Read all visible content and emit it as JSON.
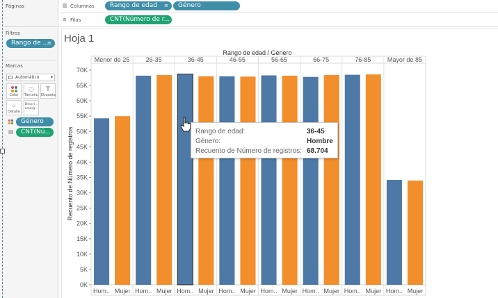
{
  "left_panel": {
    "pages_title": "Páginas",
    "filters_title": "Filtros",
    "filter_pill": "Rango de ...",
    "marks_title": "Marcas",
    "mark_type": "Automático",
    "mark_buttons": [
      "Color",
      "Tamaño",
      "Etiqueta",
      "Detalle",
      "Descri... emerg..."
    ],
    "mark_fields": [
      "Género",
      "CNT(Nú..."
    ]
  },
  "shelves": {
    "columns_label": "Columnas",
    "rows_label": "Filas",
    "columns_pills": [
      "Rango de edad",
      "Género"
    ],
    "rows_pills": [
      "CNT(Número de r..."
    ]
  },
  "sheet": {
    "title": "Hoja 1"
  },
  "colors": {
    "hombre": "#4e79a7",
    "mujer": "#f28e2b",
    "pill_blue": "#3f8ea8",
    "pill_green": "#1ea371"
  },
  "chart_data": {
    "type": "bar",
    "top_header": "Rango de edad  /  Género",
    "ylabel": "Recuento de Número de registros",
    "ylim": [
      0,
      70000
    ],
    "yticks": [
      "0K",
      "5K",
      "10K",
      "15K",
      "20K",
      "25K",
      "30K",
      "35K",
      "40K",
      "45K",
      "50K",
      "55K",
      "60K",
      "65K",
      "70K"
    ],
    "categories": [
      "Menor de 25",
      "26-35",
      "36-45",
      "46-55",
      "56-65",
      "66-75",
      "76-85",
      "Mayor de 85"
    ],
    "sub_labels": [
      "Hom..",
      "Mujer"
    ],
    "series": [
      {
        "name": "Hombre",
        "values": [
          54300,
          68200,
          68704,
          68000,
          68300,
          67800,
          68500,
          34200
        ]
      },
      {
        "name": "Mujer",
        "values": [
          55000,
          68400,
          68000,
          67900,
          68200,
          68400,
          68600,
          34000
        ]
      }
    ],
    "highlight": {
      "category": "36-45",
      "series": "Hombre"
    }
  },
  "tooltip": {
    "rows": [
      {
        "key": "Rango de edad:",
        "value": "36-45"
      },
      {
        "key": "Género:",
        "value": "Hombre"
      },
      {
        "key": "Recuento de Número de registros:",
        "value": "68.704"
      }
    ]
  }
}
